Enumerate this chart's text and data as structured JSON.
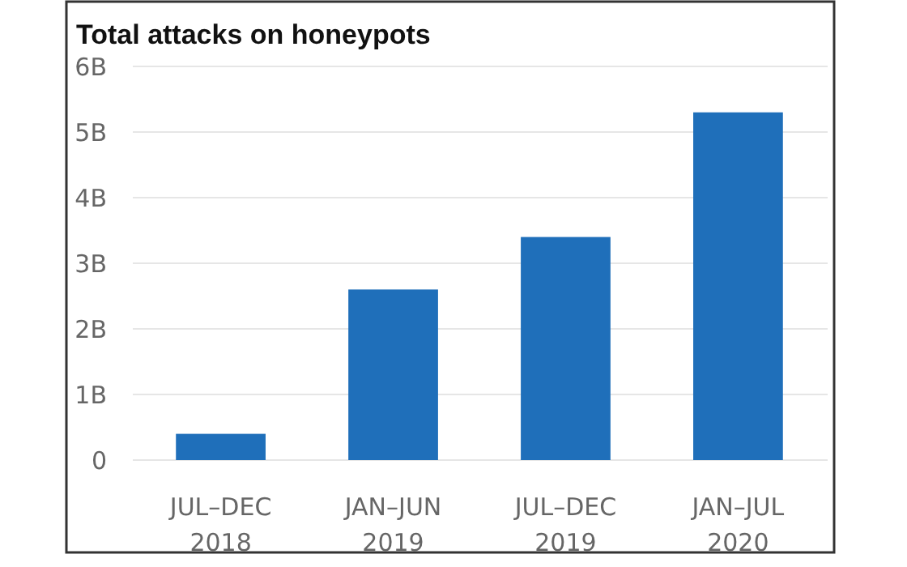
{
  "chart_data": {
    "type": "bar",
    "title": "Total attacks on honeypots",
    "categories": [
      "JUL–DEC\n2018",
      "JAN–JUN\n2019",
      "JUL–DEC\n2019",
      "JAN–JUL\n2020"
    ],
    "values": [
      0.4,
      2.6,
      3.4,
      5.3
    ],
    "color": "#1f6fba",
    "ylim": [
      0,
      6
    ],
    "yticks": [
      0,
      {
        "value": 1,
        "label": "1B"
      },
      {
        "value": 2,
        "label": "2B"
      },
      {
        "value": 3,
        "label": "3B"
      },
      {
        "value": 4,
        "label": "4B"
      },
      {
        "value": 5,
        "label": "5B"
      },
      {
        "value": 6,
        "label": "6B"
      }
    ],
    "grid": "y"
  }
}
